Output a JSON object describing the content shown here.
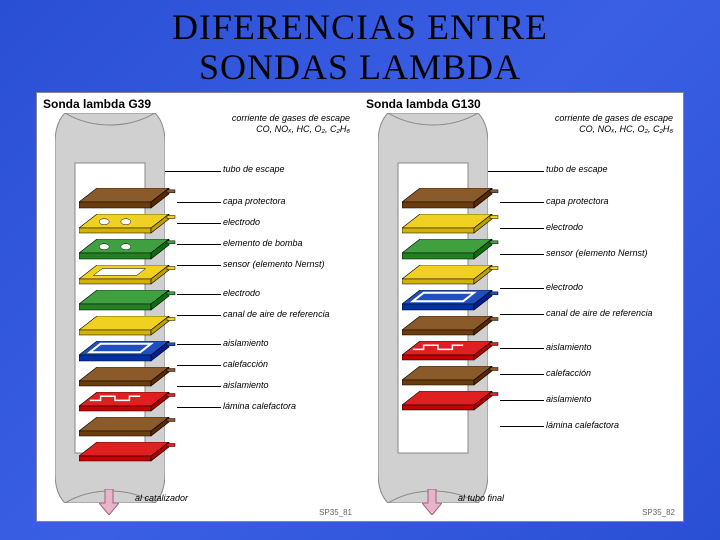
{
  "title_line1": "DIFERENCIAS ENTRE",
  "title_line2": "SONDAS LAMBDA",
  "background_gradient": [
    "#2a4fd4",
    "#3a5fe4",
    "#2a4fd4"
  ],
  "diagram_bg": "#ffffff",
  "panels": [
    {
      "title": "Sonda lambda G39",
      "gas_label": "corriente de gases de escape",
      "gas_formula": "CO, NOₓ, HC, O₂, C₂H₆",
      "bottom_arrow_label": "al catalizador",
      "ref": "SP35_81",
      "arrow_color": "#e8b4c8",
      "tube_fill": "#d0d0d0",
      "tube_stroke": "#888888",
      "layers": [
        {
          "color": "#8a5a2a",
          "label": "capa protectora",
          "type": "plate",
          "thickness": 6
        },
        {
          "color": "#f0d020",
          "label": "electrodo",
          "type": "plate-holes",
          "thickness": 5
        },
        {
          "color": "#40a040",
          "label": "elemento de bomba",
          "type": "plate-holes",
          "thickness": 6
        },
        {
          "color": "#f0d020",
          "label": "sensor (elemento Nernst)",
          "type": "plate-frame",
          "thickness": 5
        },
        {
          "color": "#40a040",
          "label": "electrodo",
          "type": "plate",
          "thickness": 6
        },
        {
          "color": "#f0d020",
          "label": "canal de aire de referencia",
          "type": "plate",
          "thickness": 5
        },
        {
          "color": "#2050c0",
          "label": "aislamiento",
          "type": "plate-channel",
          "thickness": 6
        },
        {
          "color": "#8a5a2a",
          "label": "calefacción",
          "type": "plate",
          "thickness": 5
        },
        {
          "color": "#e02020",
          "label": "aislamiento",
          "type": "plate-heater",
          "thickness": 5
        },
        {
          "color": "#8a5a2a",
          "label": "lámina calefactora",
          "type": "plate",
          "thickness": 5
        },
        {
          "color": "#e02020",
          "label": "",
          "type": "plate",
          "thickness": 5
        }
      ],
      "first_callout": {
        "label": "tubo de escape",
        "y": 0
      }
    },
    {
      "title": "Sonda lambda G130",
      "gas_label": "corriente de gases de escape",
      "gas_formula": "CO, NOₓ, HC, O₂, C₂H₆",
      "bottom_arrow_label": "al tubo final",
      "ref": "SP35_82",
      "arrow_color": "#e8b4c8",
      "tube_fill": "#d0d0d0",
      "tube_stroke": "#888888",
      "layers": [
        {
          "color": "#8a5a2a",
          "label": "capa protectora",
          "type": "plate",
          "thickness": 6
        },
        {
          "color": "#f0d020",
          "label": "electrodo",
          "type": "plate",
          "thickness": 5
        },
        {
          "color": "#40a040",
          "label": "sensor (elemento Nernst)",
          "type": "plate",
          "thickness": 6
        },
        {
          "color": "#f0d020",
          "label": "electrodo",
          "type": "plate",
          "thickness": 5
        },
        {
          "color": "#2050c0",
          "label": "canal de aire de referencia",
          "type": "plate-channel",
          "thickness": 6
        },
        {
          "color": "#8a5a2a",
          "label": "aislamiento",
          "type": "plate",
          "thickness": 5
        },
        {
          "color": "#e02020",
          "label": "calefacción",
          "type": "plate-heater",
          "thickness": 5
        },
        {
          "color": "#8a5a2a",
          "label": "aislamiento",
          "type": "plate",
          "thickness": 5
        },
        {
          "color": "#e02020",
          "label": "lámina calefactora",
          "type": "plate",
          "thickness": 5
        }
      ],
      "first_callout": {
        "label": "tubo de escape",
        "y": 0
      }
    }
  ]
}
